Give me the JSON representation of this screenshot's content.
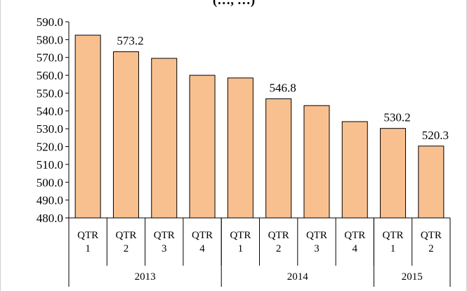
{
  "chart_data": {
    "type": "bar",
    "title": "(…, …)",
    "categories": [
      "QTR 1",
      "QTR 2",
      "QTR 3",
      "QTR 4",
      "QTR 1",
      "QTR 2",
      "QTR 3",
      "QTR 4",
      "QTR 1",
      "QTR 2"
    ],
    "category_lines": [
      [
        "QTR",
        "1"
      ],
      [
        "QTR",
        "2"
      ],
      [
        "QTR",
        "3"
      ],
      [
        "QTR",
        "4"
      ],
      [
        "QTR",
        "1"
      ],
      [
        "QTR",
        "2"
      ],
      [
        "QTR",
        "3"
      ],
      [
        "QTR",
        "4"
      ],
      [
        "QTR",
        "1"
      ],
      [
        "QTR",
        "2"
      ]
    ],
    "groups": [
      {
        "label": "2013",
        "start": 0,
        "end": 3
      },
      {
        "label": "2014",
        "start": 4,
        "end": 7
      },
      {
        "label": "2015",
        "start": 8,
        "end": 9
      }
    ],
    "values": [
      582.5,
      573.2,
      569.5,
      560.0,
      558.5,
      546.8,
      543.0,
      534.0,
      530.2,
      520.3
    ],
    "data_labels": [
      "",
      "573.2",
      "",
      "",
      "",
      "546.8",
      "",
      "",
      "530.2",
      "520.3"
    ],
    "ylim": [
      480,
      590
    ],
    "yticks": [
      "480.0",
      "490.0",
      "500.0",
      "510.0",
      "520.0",
      "530.0",
      "540.0",
      "550.0",
      "560.0",
      "570.0",
      "580.0",
      "590.0"
    ],
    "ytick_values": [
      480,
      490,
      500,
      510,
      520,
      530,
      540,
      550,
      560,
      570,
      580,
      590
    ],
    "grid": false,
    "bar_color": "#F9C08F",
    "bar_edge_color": "#000000",
    "xlabel": "",
    "ylabel": ""
  }
}
